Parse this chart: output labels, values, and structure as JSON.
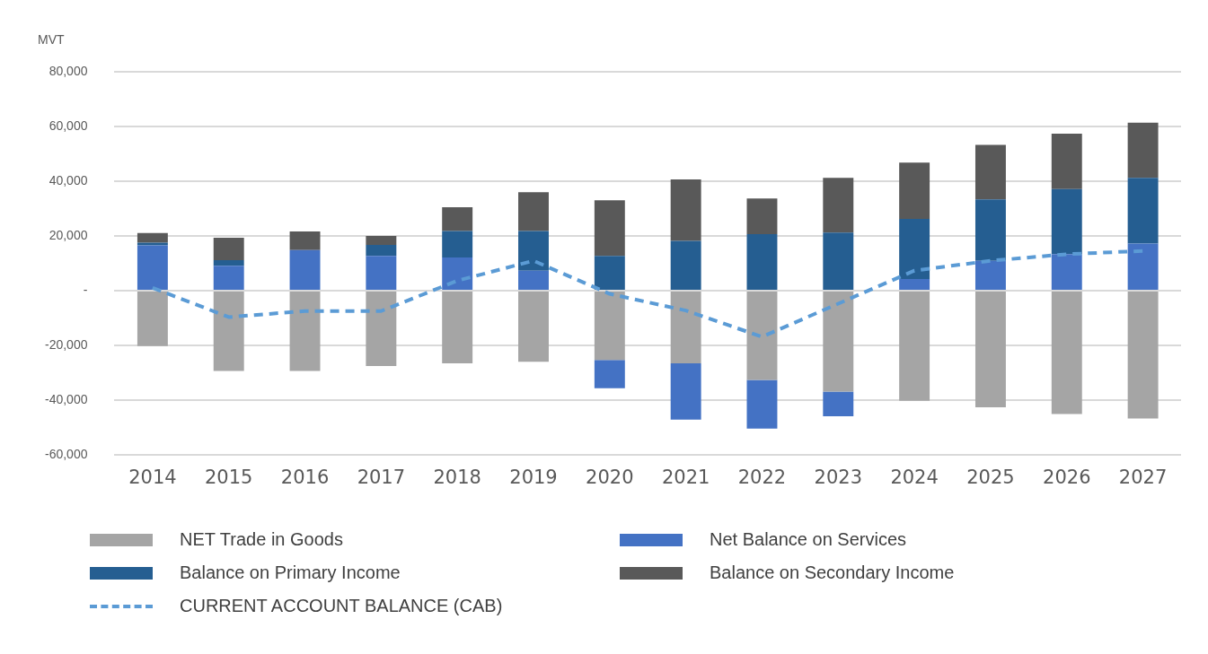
{
  "chart_data": {
    "type": "bar",
    "stacked": true,
    "ylabel": "MVT",
    "categories": [
      "2014",
      "2015",
      "2016",
      "2017",
      "2018",
      "2019",
      "2020",
      "2021",
      "2022",
      "2023",
      "2024",
      "2025",
      "2026",
      "2027"
    ],
    "series": [
      {
        "name": "NET Trade in Goods",
        "color": "#a5a5a5",
        "values": [
          -20300,
          -29400,
          -29400,
          -27600,
          -26600,
          -26000,
          -25400,
          -26600,
          -32700,
          -36900,
          -40300,
          -42700,
          -45100,
          -46800
        ]
      },
      {
        "name": "Net Balance on Services",
        "color": "#4472c4",
        "values": [
          16500,
          9100,
          14800,
          12700,
          12100,
          7300,
          -10300,
          -20600,
          -17800,
          -9100,
          4200,
          10900,
          13300,
          17200
        ]
      },
      {
        "name": "Balance on Primary Income",
        "color": "#255e91",
        "values": [
          1000,
          2000,
          0,
          4000,
          9700,
          14500,
          12700,
          18200,
          20600,
          21200,
          22000,
          22400,
          23800,
          24000
        ]
      },
      {
        "name": "Balance on Secondary Income",
        "color": "#595959",
        "values": [
          3500,
          8200,
          6800,
          3300,
          8700,
          14200,
          20300,
          22400,
          13100,
          20000,
          20600,
          20000,
          20300,
          20200
        ]
      },
      {
        "name": "CURRENT ACCOUNT BALANCE (CAB)",
        "type": "line",
        "line_style": "dashed",
        "marker": "none",
        "color": "#5b9bd5",
        "values": [
          1000,
          -9700,
          -7500,
          -7500,
          3600,
          10900,
          -1200,
          -7300,
          -16900,
          -4800,
          7300,
          10900,
          13300,
          14500
        ]
      }
    ],
    "ylim": [
      -60000,
      80000
    ],
    "yticks": [
      {
        "value": -60000,
        "label": "-60,000"
      },
      {
        "value": -40000,
        "label": "-40,000"
      },
      {
        "value": -20000,
        "label": "-20,000"
      },
      {
        "value": 0,
        "label": "-"
      },
      {
        "value": 20000,
        "label": "20,000"
      },
      {
        "value": 40000,
        "label": "40,000"
      },
      {
        "value": 60000,
        "label": "60,000"
      },
      {
        "value": 80000,
        "label": "80,000"
      }
    ],
    "grid": "y",
    "legend": "bottom"
  }
}
